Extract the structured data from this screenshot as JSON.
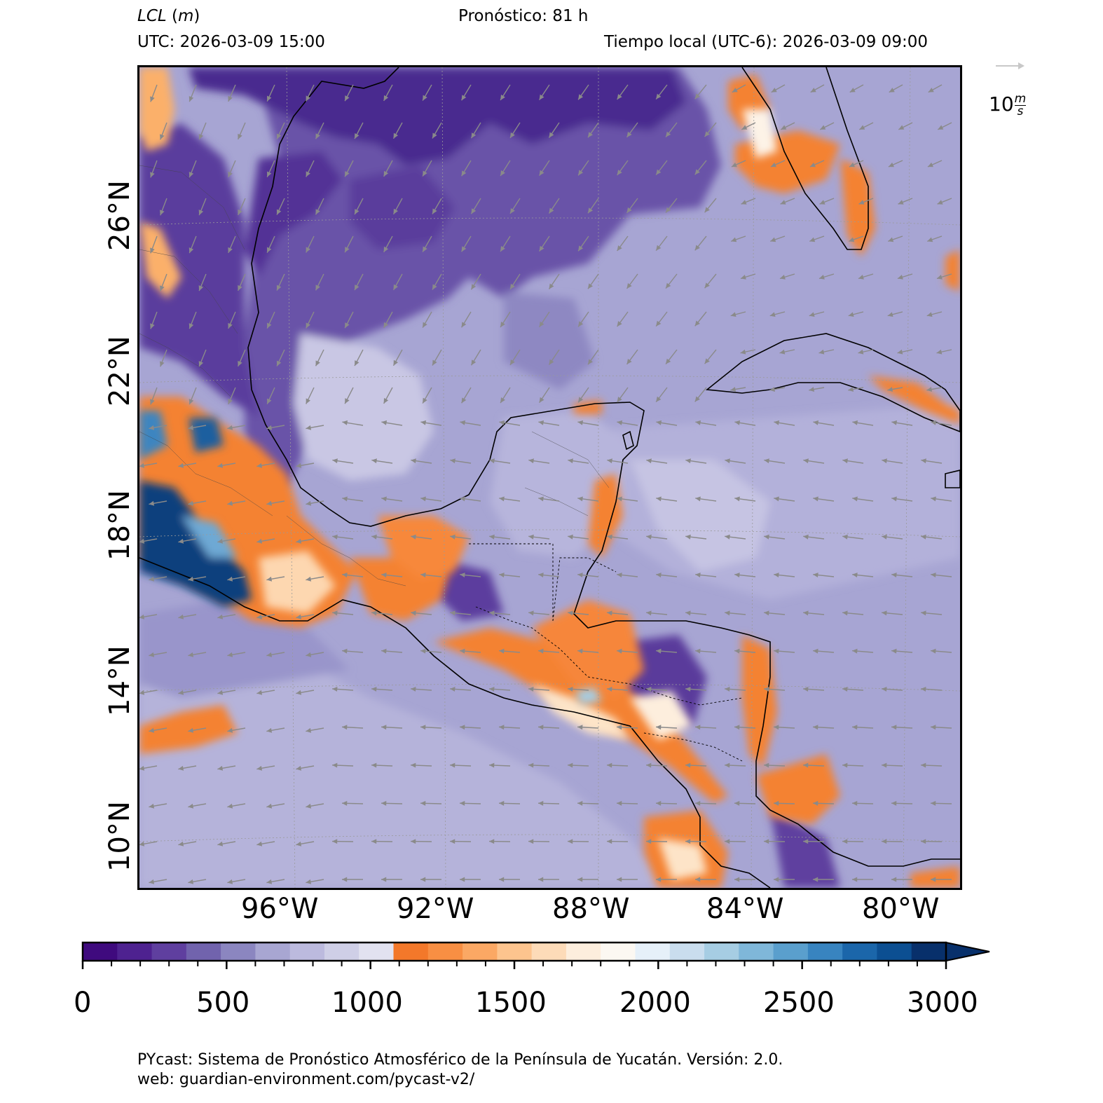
{
  "header": {
    "title_var": "LCL",
    "title_unit": "m",
    "forecast": "Pronóstico: 81 h",
    "utc": "UTC:  2026-03-09 15:00",
    "local": "Tiempo local (UTC-6): 2026-03-09 09:00"
  },
  "wind_key": {
    "value": "10",
    "unit_num": "m",
    "unit_den": "s"
  },
  "axes": {
    "lat_labels": [
      "26°N",
      "22°N",
      "18°N",
      "14°N",
      "10°N"
    ],
    "lon_labels": [
      "96°W",
      "92°W",
      "88°W",
      "84°W",
      "80°W"
    ]
  },
  "colorbar": {
    "ticks": [
      "0",
      "500",
      "1000",
      "1500",
      "2000",
      "2500",
      "3000"
    ],
    "range": [
      0,
      3000
    ],
    "step": 100,
    "extend": "max",
    "colors": [
      "#3f0a7e",
      "#4e2290",
      "#5f3f9f",
      "#7163ad",
      "#8b86c0",
      "#a8a6d2",
      "#bcbade",
      "#cfcfe7",
      "#e2e2f0",
      "#f3782a",
      "#f88f43",
      "#fba864",
      "#fdc48e",
      "#fddbb8",
      "#fdeedd",
      "#fcf8f2",
      "#e6f0f9",
      "#c9ddee",
      "#a6cde3",
      "#7fb7d9",
      "#5a9fcd",
      "#3884c0",
      "#1b66aa",
      "#0c4f92",
      "#08306b"
    ]
  },
  "footer": {
    "line1": "PYcast: Sistema de Pronóstico Atmosférico de la Península de Yucatán. Versión: 2.0.",
    "line2": "web: guardian-environment.com/pycast-v2/"
  }
}
